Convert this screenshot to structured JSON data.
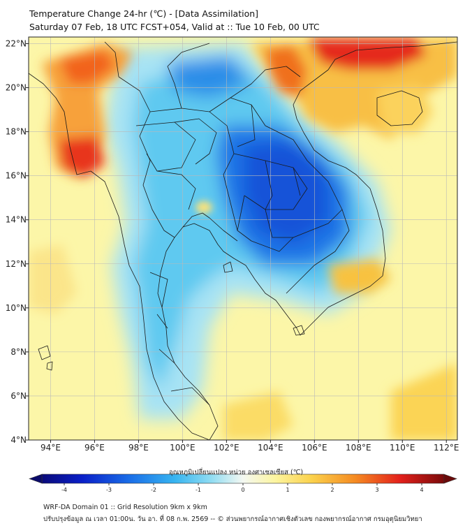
{
  "header": {
    "title_line1": "Temperature Change 24-hr (℃) - [Data Assimilation]",
    "title_line2": "Saturday 07 Feb, 18 UTC FCST+054, Valid at :: Tue 10 Feb, 00 UTC"
  },
  "map": {
    "lon_range": [
      93,
      112.5
    ],
    "lat_range": [
      4,
      22.3
    ],
    "lon_ticks": [
      "94°E",
      "96°E",
      "98°E",
      "100°E",
      "102°E",
      "104°E",
      "106°E",
      "108°E",
      "110°E",
      "112°E"
    ],
    "lat_ticks": [
      "4°N",
      "6°N",
      "8°N",
      "10°N",
      "12°N",
      "14°N",
      "16°N",
      "18°N",
      "20°N",
      "22°N"
    ],
    "colors": {
      "neutral": "#fcf6a8",
      "cold": "#1a7bea",
      "warm": "#f37b1f",
      "hot": "#e8211c"
    }
  },
  "colorbar": {
    "label": "อุณหภูมิเปลี่ยนแปลง หน่วย องศาเซลเซียส (℃)",
    "ticks": [
      "-4",
      "-3",
      "-2",
      "-1",
      "0",
      "1",
      "2",
      "3",
      "4"
    ],
    "min": -4.5,
    "max": 4.5
  },
  "footer": {
    "line1": "WRF-DA Domain 01 :: Grid Resolution 9km x 9km",
    "line2": "ปรับปรุงข้อมูล ณ เวลา 01:00น. วัน อา. ที่ 08 ก.พ. 2569 -- © ส่วนพยากรณ์อากาศเชิงตัวเลข กองพยากรณ์อากาศ กรมอุตุนิยมวิทยา"
  }
}
